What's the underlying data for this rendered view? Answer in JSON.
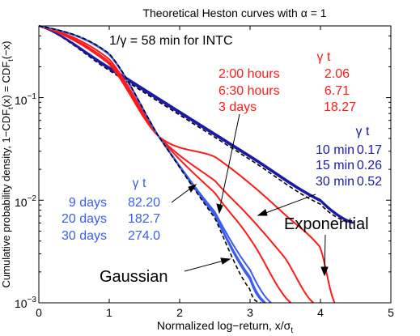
{
  "chart_data": {
    "type": "line",
    "title": "Theoretical Heston curves with α = 1",
    "xlabel": "Normalized log−return, x/σ",
    "xlabel_sub": "t",
    "ylabel": "Cumulative probability density, 1−CDF",
    "ylabel_sub": "t",
    "ylabel_tail": "(x) = CDF",
    "ylabel_sub2": "t",
    "ylabel_end": "(−x)",
    "xlim": [
      0,
      5
    ],
    "ylim": [
      0.001,
      0.5
    ],
    "yscale": "log",
    "grid": false,
    "x_ticks": [
      "0",
      "1",
      "2",
      "3",
      "4",
      "5"
    ],
    "y_ticks": [
      {
        "base": "10",
        "exp": "−3"
      },
      {
        "base": "10",
        "exp": "−2"
      },
      {
        "base": "10",
        "exp": "−1"
      }
    ],
    "annotations": {
      "header": "1/γ = 58 min  for INTC",
      "gamma_t": "γ t",
      "red_rows": [
        {
          "label": "2:00 hours",
          "value": "2.06"
        },
        {
          "label": "6:30 hours",
          "value": "6.71"
        },
        {
          "label": "3 days",
          "value": "18.27"
        }
      ],
      "navy_rows": [
        {
          "label": "10 min",
          "value": "0.17"
        },
        {
          "label": "15 min",
          "value": "0.26"
        },
        {
          "label": "30 min",
          "value": "0.52"
        }
      ],
      "blue_rows": [
        {
          "label": "9 days",
          "value": "82.20"
        },
        {
          "label": "20 days",
          "value": "182.7"
        },
        {
          "label": "30 days",
          "value": "274.0"
        }
      ],
      "exponential": "Exponential",
      "gaussian": "Gaussian"
    },
    "colors": {
      "red": "#ff1a1a",
      "navy": "#1a1aa6",
      "blue": "#3a5cf0",
      "black": "#000000"
    },
    "series": [
      {
        "name": "Exponential",
        "color": "black",
        "dashed": true,
        "points": [
          [
            0,
            0.5
          ],
          [
            1,
            0.184
          ],
          [
            2,
            0.0677
          ],
          [
            3,
            0.0249
          ],
          [
            4,
            0.00916
          ],
          [
            4.4,
            0.0061
          ]
        ]
      },
      {
        "name": "10 min",
        "color": "navy",
        "points": [
          [
            0,
            0.5
          ],
          [
            1,
            0.19
          ],
          [
            2,
            0.0705
          ],
          [
            3,
            0.0262
          ],
          [
            4,
            0.0098
          ],
          [
            4.45,
            0.006
          ]
        ]
      },
      {
        "name": "15 min",
        "color": "navy",
        "points": [
          [
            0,
            0.5
          ],
          [
            1,
            0.192
          ],
          [
            2,
            0.0715
          ],
          [
            3,
            0.0266
          ],
          [
            4,
            0.0099
          ],
          [
            4.46,
            0.006
          ]
        ]
      },
      {
        "name": "30 min",
        "color": "navy",
        "points": [
          [
            0,
            0.5
          ],
          [
            1,
            0.198
          ],
          [
            2,
            0.0735
          ],
          [
            3,
            0.0272
          ],
          [
            4,
            0.0101
          ],
          [
            4.48,
            0.006
          ]
        ]
      },
      {
        "name": "2:00 hours",
        "color": "red",
        "points": [
          [
            0,
            0.5
          ],
          [
            1,
            0.213
          ],
          [
            1.7,
            0.042
          ],
          [
            2.5,
            0.0265
          ],
          [
            3,
            0.0145
          ],
          [
            3.5,
            0.0072
          ],
          [
            4,
            0.00345
          ],
          [
            4.2,
            0.001
          ]
        ]
      },
      {
        "name": "6:30 hours",
        "color": "red",
        "points": [
          [
            0,
            0.5
          ],
          [
            1,
            0.223
          ],
          [
            1.7,
            0.042
          ],
          [
            2.5,
            0.0155
          ],
          [
            3,
            0.0068
          ],
          [
            3.5,
            0.00272
          ],
          [
            3.9,
            0.001
          ]
        ]
      },
      {
        "name": "3 days",
        "color": "red",
        "points": [
          [
            0,
            0.5
          ],
          [
            1,
            0.237
          ],
          [
            1.7,
            0.042
          ],
          [
            2.5,
            0.0118
          ],
          [
            3,
            0.0042
          ],
          [
            3.58,
            0.001
          ]
        ]
      },
      {
        "name": "9 days",
        "color": "blue",
        "points": [
          [
            0,
            0.5
          ],
          [
            1,
            0.262
          ],
          [
            1.7,
            0.042
          ],
          [
            2.5,
            0.0077
          ],
          [
            3,
            0.0021
          ],
          [
            3.3,
            0.001
          ]
        ]
      },
      {
        "name": "20 days",
        "color": "blue",
        "points": [
          [
            0,
            0.5
          ],
          [
            1,
            0.265
          ],
          [
            1.7,
            0.042
          ],
          [
            2.5,
            0.0073
          ],
          [
            3,
            0.0018
          ],
          [
            3.22,
            0.001
          ]
        ]
      },
      {
        "name": "30 days",
        "color": "blue",
        "points": [
          [
            0,
            0.5
          ],
          [
            1,
            0.266
          ],
          [
            1.7,
            0.042
          ],
          [
            2.5,
            0.0071
          ],
          [
            3,
            0.0017
          ],
          [
            3.2,
            0.001
          ]
        ]
      },
      {
        "name": "Gaussian",
        "color": "black",
        "dashed": true,
        "points": [
          [
            0,
            0.5
          ],
          [
            1,
            0.2677
          ],
          [
            1.7,
            0.042
          ],
          [
            2.5,
            0.0067
          ],
          [
            3,
            0.00135
          ],
          [
            3.15,
            0.001
          ]
        ]
      }
    ]
  }
}
